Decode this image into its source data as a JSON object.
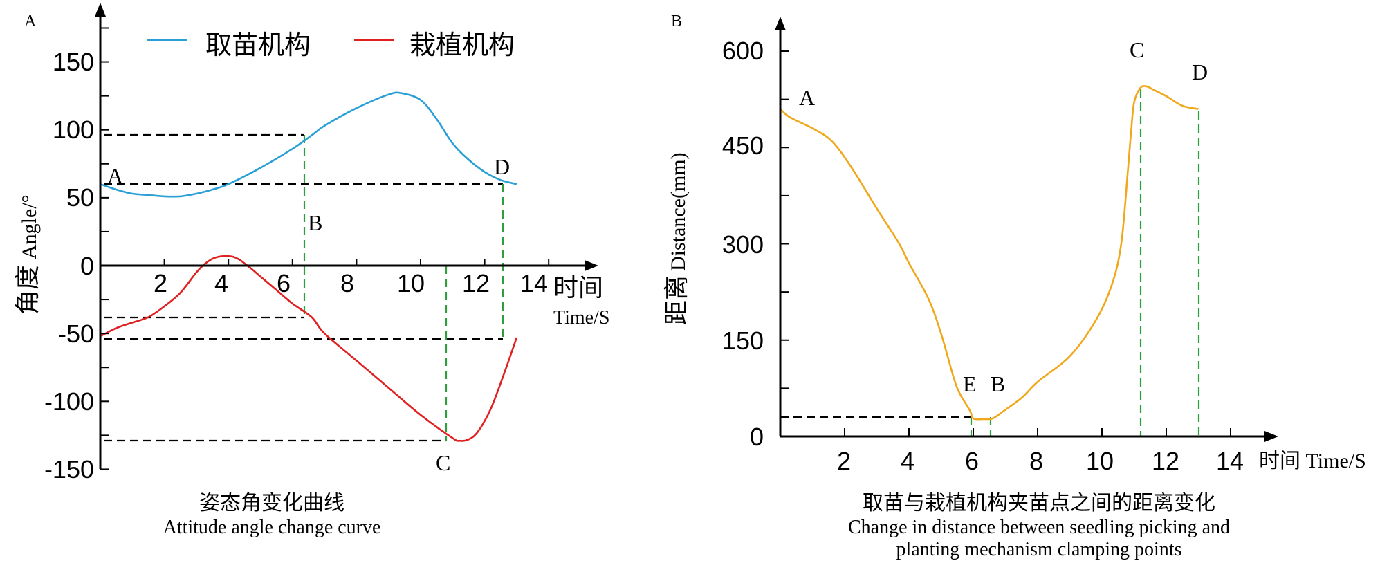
{
  "chart_data": [
    {
      "panel_label": "A",
      "type": "line",
      "title_cn": "姿态角变化曲线",
      "title_en": "Attitude angle change curve",
      "ylabel_cn": "角度",
      "ylabel_en": "Angle/°",
      "xlabel_cn": "时间",
      "xlabel_en": "Time/S",
      "xlim": [
        0,
        15
      ],
      "ylim": [
        -150,
        190
      ],
      "x_ticks": [
        "2",
        "4",
        "6",
        "8",
        "10",
        "12",
        "14"
      ],
      "y_ticks": [
        "150",
        "100",
        "50",
        "0",
        "-50",
        "-100",
        "-150"
      ],
      "legend": [
        "取苗机构",
        "栽植机构"
      ],
      "series": [
        {
          "name": "取苗机构",
          "color": "#2a9fd6",
          "x": [
            0,
            0.5,
            1,
            1.5,
            2,
            2.5,
            3,
            3.5,
            4,
            5,
            6,
            6.6,
            7,
            8,
            9,
            9.4,
            10,
            10.5,
            11,
            11.5,
            12,
            12.5,
            13
          ],
          "y": [
            60,
            56,
            53,
            52,
            51,
            51,
            53,
            56,
            60,
            72,
            86,
            96,
            103,
            116,
            126,
            127,
            122,
            108,
            90,
            78,
            69,
            63,
            60
          ]
        },
        {
          "name": "栽植机构",
          "color": "#e02020",
          "x": [
            0,
            0.5,
            1,
            1.5,
            2,
            2.5,
            3,
            3.3,
            3.6,
            4,
            4.3,
            4.7,
            5,
            5.5,
            6,
            6.6,
            7,
            8,
            9,
            10,
            11,
            11.2,
            11.5,
            11.8,
            12.2,
            12.6,
            13
          ],
          "y": [
            -52,
            -46,
            -42,
            -38,
            -30,
            -20,
            -5,
            2,
            6,
            7,
            5,
            -2,
            -8,
            -18,
            -28,
            -38,
            -50,
            -70,
            -90,
            -110,
            -127,
            -129,
            -128,
            -122,
            -105,
            -80,
            -53
          ]
        }
      ],
      "points": [
        "A",
        "B",
        "C",
        "D"
      ]
    },
    {
      "panel_label": "B",
      "type": "line",
      "title_cn": "取苗与栽植机构夹苗点之间的距离变化",
      "title_en_line1": "Change in distance between seedling picking and",
      "title_en_line2": "planting mechanism clamping points",
      "ylabel_cn": "距离",
      "ylabel_en": "Distance(mm)",
      "xlabel": "时间 Time/S",
      "xlim": [
        0,
        15
      ],
      "ylim": [
        0,
        640
      ],
      "x_ticks": [
        "2",
        "4",
        "6",
        "8",
        "10",
        "12",
        "14"
      ],
      "y_ticks": [
        "600",
        "450",
        "300",
        "150",
        "0"
      ],
      "series": [
        {
          "name": "distance",
          "color": "#f0a81a",
          "x": [
            0,
            0.3,
            1,
            1.6,
            2.2,
            3,
            3.7,
            4,
            4.6,
            5,
            5.4,
            5.6,
            5.9,
            6,
            6.3,
            6.6,
            6.9,
            7.5,
            8,
            9,
            9.8,
            10.3,
            10.6,
            10.8,
            10.9,
            11,
            11.2,
            11.4,
            11.6,
            12,
            12.5,
            13
          ],
          "y": [
            510,
            497,
            480,
            460,
            420,
            355,
            300,
            270,
            215,
            160,
            90,
            65,
            40,
            28,
            27,
            28,
            38,
            60,
            85,
            125,
            180,
            235,
            300,
            410,
            470,
            520,
            543,
            545,
            540,
            530,
            515,
            510
          ]
        }
      ],
      "points": [
        "A",
        "E",
        "B",
        "C",
        "D"
      ]
    }
  ]
}
